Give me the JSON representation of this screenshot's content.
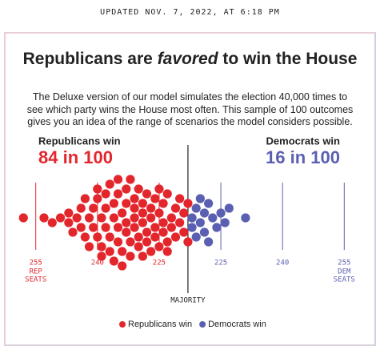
{
  "header": "UPDATED NOV. 7, 2022, AT 6:18 PM",
  "chart_data": {
    "type": "beeswarm",
    "title_before": "Republicans are",
    "title_emphasis": "favored",
    "title_after": "to win the House",
    "description": "The Deluxe version of our model simulates the election 40,000 times to see which party wins the House most often. This sample of 100 outcomes gives you an idea of the range of scenarios the model considers possible.",
    "left_heading": "Republicans win",
    "left_odds": "84 in 100",
    "right_heading": "Democrats win",
    "right_odds": "16 in 100",
    "xlim": [
      260,
      175
    ],
    "xticks": [
      255,
      240,
      225,
      {
        "value": 210,
        "label": "225"
      },
      {
        "value": 195,
        "label": "240"
      },
      {
        "value": 180,
        "label": "255"
      }
    ],
    "left_axis_note": [
      "REP",
      "SEATS"
    ],
    "right_axis_note": [
      "DEM",
      "SEATS"
    ],
    "majority": 218,
    "majority_label": "MAJORITY",
    "series": [
      {
        "name": "Republicans win",
        "color": "#e3262c",
        "values": [
          258,
          253,
          251,
          249,
          247,
          247,
          246,
          245,
          244,
          244,
          243,
          243,
          242,
          242,
          241,
          241,
          240,
          240,
          240,
          239,
          239,
          239,
          238,
          238,
          238,
          237,
          237,
          237,
          236,
          236,
          236,
          235,
          235,
          235,
          235,
          234,
          234,
          234,
          233,
          233,
          233,
          233,
          232,
          232,
          232,
          231,
          231,
          231,
          231,
          230,
          230,
          230,
          229,
          229,
          229,
          229,
          228,
          228,
          228,
          227,
          227,
          227,
          226,
          226,
          226,
          225,
          225,
          225,
          224,
          224,
          224,
          223,
          223,
          223,
          222,
          222,
          221,
          221,
          220,
          220,
          219,
          219,
          218,
          218
        ]
      },
      {
        "name": "Democrats win",
        "color": "#5b5fb1",
        "values": [
          217,
          217,
          216,
          216,
          215,
          215,
          214,
          214,
          213,
          213,
          212,
          211,
          210,
          209,
          208,
          204
        ]
      }
    ]
  }
}
